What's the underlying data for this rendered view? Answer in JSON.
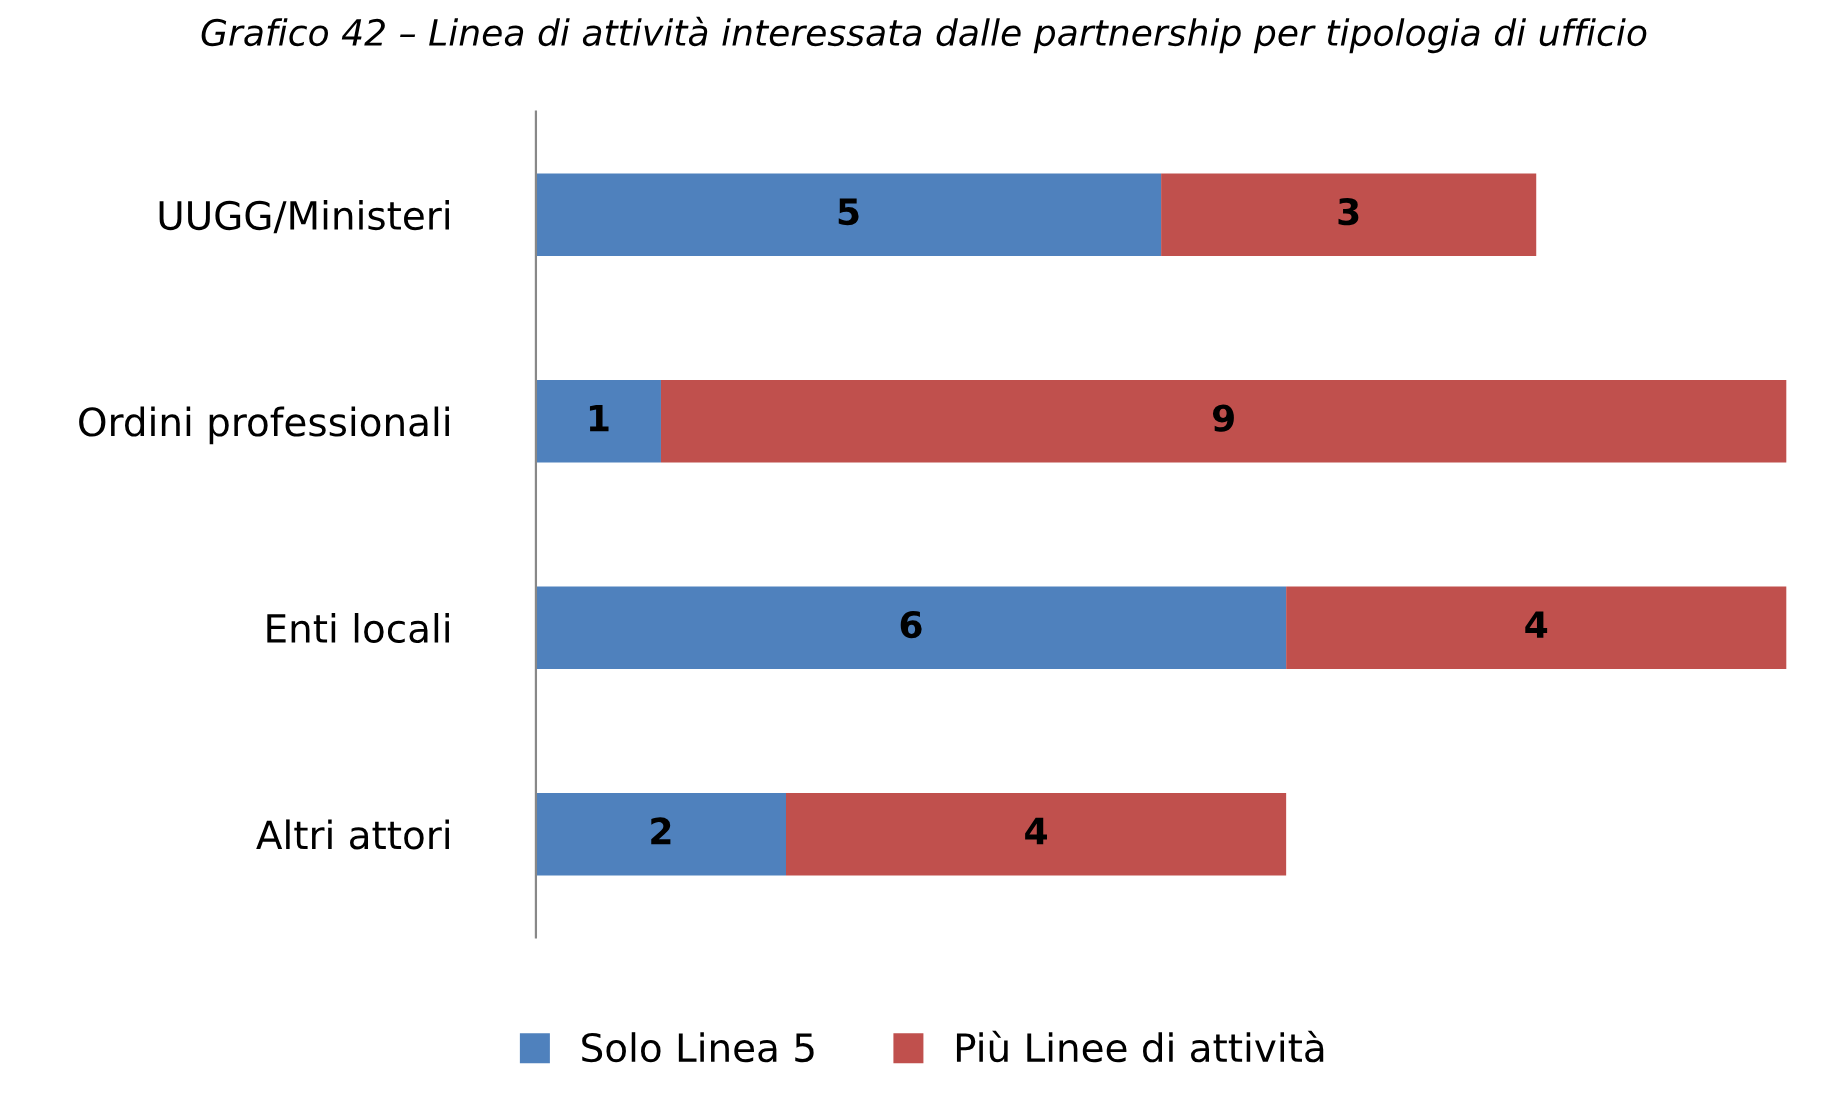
{
  "chart_data": {
    "type": "bar",
    "orientation": "horizontal",
    "stacked": true,
    "title": "Grafico 42 – Linea di attività interessata dalle partnership per tipologia di ufficio",
    "categories": [
      "UUGG/Ministeri",
      "Ordini professionali",
      "Enti locali",
      "Altri attori"
    ],
    "series": [
      {
        "name": "Solo Linea 5",
        "color": "#4f81bd",
        "values": [
          5,
          1,
          6,
          2
        ]
      },
      {
        "name": "Più Linee di attività",
        "color": "#c0504d",
        "values": [
          3,
          9,
          4,
          4
        ]
      }
    ],
    "data_labels": true,
    "legend": "bottom",
    "grid": false
  }
}
